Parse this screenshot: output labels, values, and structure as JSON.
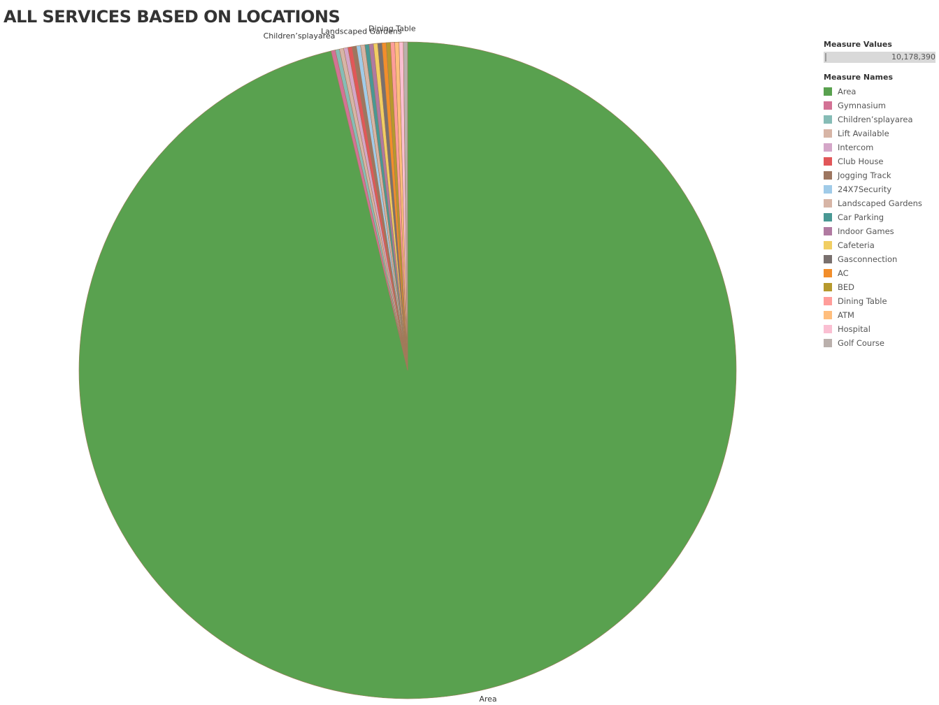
{
  "chart_data": {
    "type": "pie",
    "title": "ALL SERVICES BASED ON LOCATIONS",
    "legend_title": "Measure Names",
    "legend_placement": "right",
    "size_legend": {
      "title": "Measure Values",
      "max_label": "10,178,390"
    },
    "slices": [
      {
        "name": "Area",
        "value": 10178390,
        "color": "#59a14f"
      },
      {
        "name": "Gymnasium",
        "value": 22000,
        "color": "#d37295"
      },
      {
        "name": "Children’splayarea",
        "value": 22000,
        "color": "#86bcb6"
      },
      {
        "name": "Lift Available",
        "value": 22000,
        "color": "#d7b5a6"
      },
      {
        "name": "Intercom",
        "value": 22000,
        "color": "#d4a6c8"
      },
      {
        "name": "Club House",
        "value": 22000,
        "color": "#e15759"
      },
      {
        "name": "Jogging Track",
        "value": 22000,
        "color": "#9d7660"
      },
      {
        "name": "24X7Security",
        "value": 22000,
        "color": "#a0cbe8"
      },
      {
        "name": "Landscaped Gardens",
        "value": 22000,
        "color": "#d7b5a6"
      },
      {
        "name": "Car Parking",
        "value": 22000,
        "color": "#499894"
      },
      {
        "name": "Indoor Games",
        "value": 22000,
        "color": "#b07aa1"
      },
      {
        "name": "Cafeteria",
        "value": 22000,
        "color": "#f1ce63"
      },
      {
        "name": "Gasconnection",
        "value": 22000,
        "color": "#79706e"
      },
      {
        "name": "AC",
        "value": 22000,
        "color": "#f28e2b"
      },
      {
        "name": "BED",
        "value": 22000,
        "color": "#b6992d"
      },
      {
        "name": "Dining Table",
        "value": 22000,
        "color": "#ff9d9a"
      },
      {
        "name": "ATM",
        "value": 22000,
        "color": "#ffbe7d"
      },
      {
        "name": "Hospital",
        "value": 22000,
        "color": "#fabfd2"
      },
      {
        "name": "Golf Course",
        "value": 22000,
        "color": "#bab0ac"
      }
    ],
    "slice_labels": [
      "Area",
      "Children’splayarea",
      "Landscaped Gardens",
      "Dining Table"
    ]
  }
}
